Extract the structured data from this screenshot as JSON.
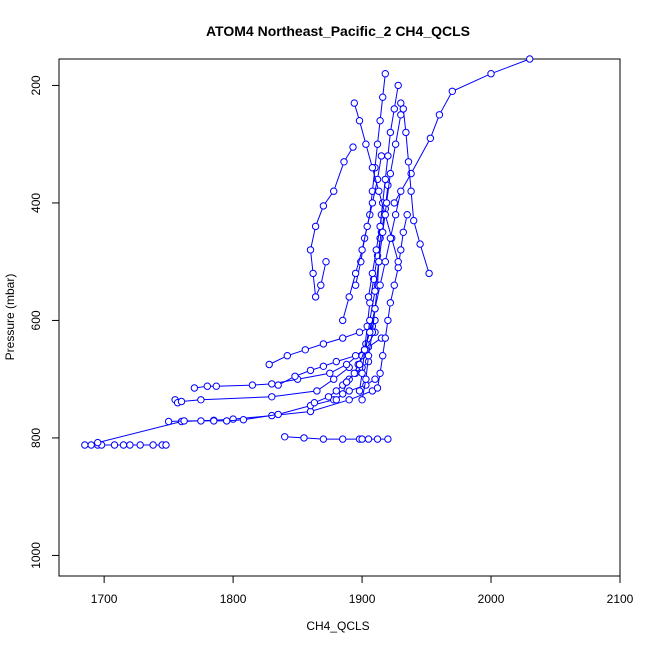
{
  "chart_data": {
    "type": "line",
    "title": "ATOM4 Northeast_Pacific_2 CH4_QCLS",
    "xlabel": "CH4_QCLS",
    "ylabel": "Pressure (mbar)",
    "xlim": [
      1665,
      2100
    ],
    "ylim": [
      1035,
      155
    ],
    "y_reversed": true,
    "x_ticks": [
      1700,
      1800,
      1900,
      2000,
      2100
    ],
    "y_ticks": [
      200,
      400,
      600,
      800,
      1000
    ],
    "grid": false,
    "line_color": "#0000ff",
    "marker": "open-circle",
    "series": [
      {
        "x": [
          1685,
          1690,
          1695,
          1698,
          1708,
          1715,
          1720,
          1728,
          1738,
          1745,
          1748
        ],
        "y": [
          812,
          812,
          812,
          812,
          812,
          812,
          812,
          812,
          812,
          812,
          812
        ]
      },
      {
        "x": [
          1695,
          1760,
          1785,
          1800,
          1830,
          1860,
          1890,
          1908
        ],
        "y": [
          808,
          772,
          770,
          768,
          762,
          755,
          735,
          720
        ]
      },
      {
        "x": [
          1750,
          1762,
          1775,
          1785,
          1795,
          1808,
          1835,
          1860,
          1878,
          1890,
          1903,
          1910
        ],
        "y": [
          772,
          771,
          771,
          771,
          771,
          769,
          760,
          745,
          735,
          720,
          710,
          700
        ]
      },
      {
        "x": [
          1840,
          1855,
          1870,
          1885,
          1898,
          1900,
          1905,
          1912,
          1920
        ],
        "y": [
          798,
          800,
          802,
          802,
          802,
          802,
          802,
          802,
          802
        ]
      },
      {
        "x": [
          1755,
          1757,
          1760,
          1775,
          1830,
          1865,
          1878,
          1890
        ],
        "y": [
          735,
          740,
          738,
          735,
          730,
          720,
          700,
          680
        ]
      },
      {
        "x": [
          1770,
          1780,
          1787,
          1815,
          1830,
          1850,
          1875,
          1888,
          1902,
          1910
        ],
        "y": [
          715,
          712,
          712,
          710,
          708,
          700,
          690,
          675,
          650,
          620
        ]
      },
      {
        "x": [
          1835,
          1848,
          1860,
          1870,
          1880,
          1895,
          1905,
          1915
        ],
        "y": [
          710,
          695,
          685,
          678,
          670,
          660,
          645,
          630
        ]
      },
      {
        "x": [
          1828,
          1842,
          1856,
          1870,
          1885,
          1898,
          1908
        ],
        "y": [
          675,
          660,
          650,
          640,
          630,
          620,
          610
        ]
      },
      {
        "x": [
          1863,
          1874,
          1880,
          1885,
          1888,
          1890,
          1895,
          1900,
          1905
        ],
        "y": [
          740,
          730,
          720,
          710,
          705,
          700,
          690,
          680,
          670
        ]
      },
      {
        "x": [
          1880,
          1885,
          1888,
          1894,
          1897,
          1900,
          1903,
          1906,
          1910
        ],
        "y": [
          735,
          725,
          705,
          690,
          675,
          660,
          640,
          620,
          600
        ]
      },
      {
        "x": [
          1900,
          1903,
          1905,
          1908,
          1910,
          1912,
          1913,
          1914,
          1915
        ],
        "y": [
          735,
          700,
          660,
          620,
          580,
          540,
          500,
          460,
          420
        ]
      },
      {
        "x": [
          1898,
          1900,
          1902,
          1904,
          1906,
          1909,
          1912,
          1915,
          1918,
          1920
        ],
        "y": [
          720,
          690,
          650,
          610,
          570,
          530,
          490,
          450,
          410,
          370
        ]
      },
      {
        "x": [
          1912,
          1914,
          1916,
          1918,
          1920,
          1922,
          1925,
          1928,
          1930,
          1932,
          1935
        ],
        "y": [
          715,
          690,
          660,
          630,
          600,
          570,
          540,
          510,
          480,
          450,
          420
        ]
      },
      {
        "x": [
          1872,
          1868,
          1864,
          1862,
          1860,
          1864,
          1870,
          1878,
          1886,
          1893
        ],
        "y": [
          500,
          540,
          560,
          520,
          480,
          440,
          405,
          380,
          330,
          305
        ]
      },
      {
        "x": [
          1925,
          1938,
          1953,
          1960,
          1970,
          2000,
          2030
        ],
        "y": [
          400,
          350,
          290,
          250,
          210,
          180,
          155
        ]
      },
      {
        "x": [
          1895,
          1899,
          1902,
          1906,
          1908,
          1910,
          1912,
          1914,
          1916,
          1918
        ],
        "y": [
          540,
          500,
          460,
          420,
          380,
          340,
          300,
          260,
          220,
          180
        ]
      },
      {
        "x": [
          1905,
          1908,
          1911,
          1914,
          1916,
          1918,
          1920,
          1922,
          1925,
          1928
        ],
        "y": [
          560,
          520,
          480,
          440,
          400,
          360,
          320,
          280,
          240,
          200
        ]
      },
      {
        "x": [
          1885,
          1890,
          1895,
          1900,
          1904,
          1908,
          1912,
          1915
        ],
        "y": [
          600,
          560,
          520,
          480,
          440,
          400,
          360,
          320
        ]
      },
      {
        "x": [
          1930,
          1932,
          1934,
          1936,
          1938,
          1940,
          1945,
          1952
        ],
        "y": [
          230,
          240,
          280,
          330,
          380,
          430,
          470,
          520
        ]
      },
      {
        "x": [
          1903,
          1906,
          1910,
          1913,
          1916,
          1919,
          1922,
          1926,
          1930
        ],
        "y": [
          650,
          600,
          550,
          500,
          450,
          400,
          350,
          300,
          250
        ]
      },
      {
        "x": [
          1894,
          1898,
          1903,
          1908,
          1913,
          1918,
          1923,
          1928
        ],
        "y": [
          230,
          260,
          300,
          340,
          380,
          420,
          460,
          500
        ]
      },
      {
        "x": [
          1898,
          1902,
          1906,
          1910,
          1914,
          1918,
          1922,
          1926,
          1930
        ],
        "y": [
          675,
          650,
          620,
          580,
          540,
          500,
          460,
          420,
          380
        ]
      }
    ]
  }
}
